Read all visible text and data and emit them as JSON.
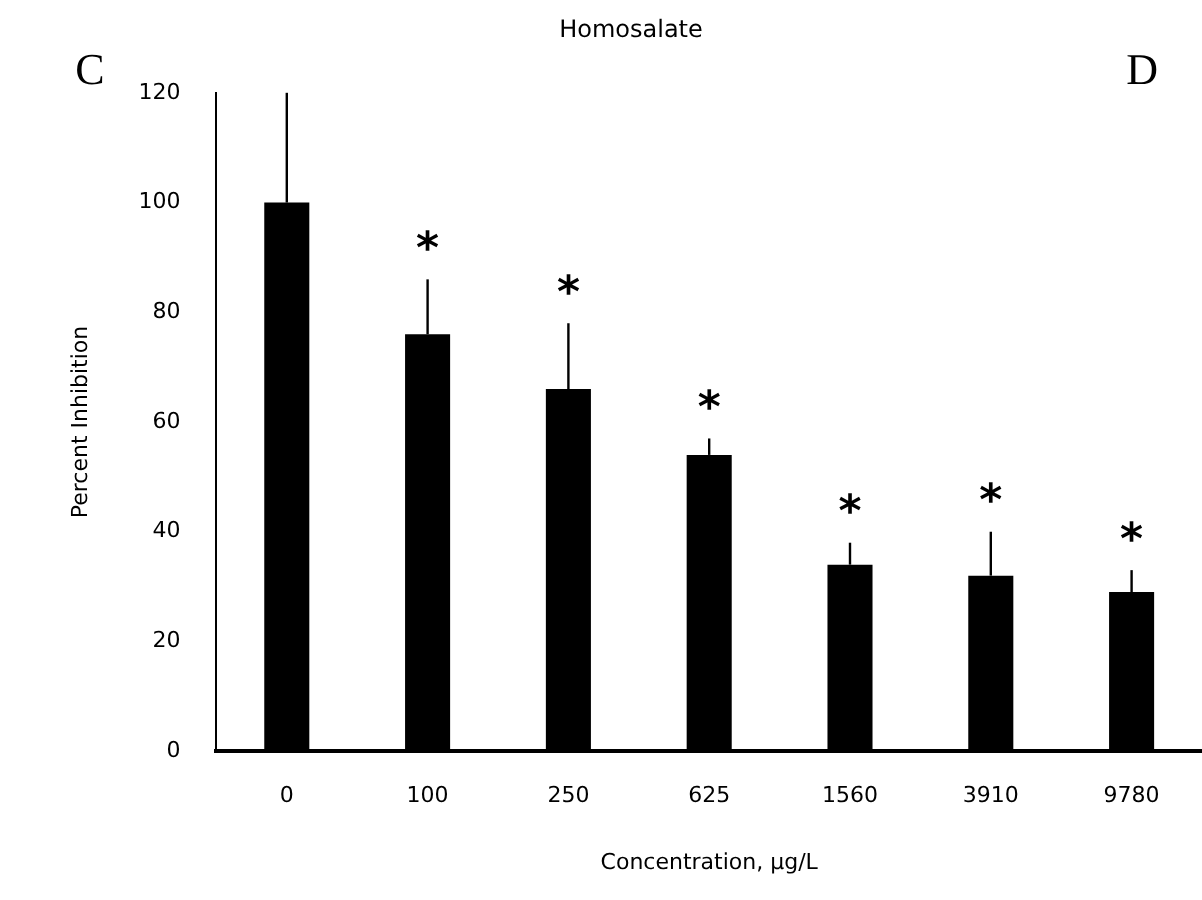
{
  "chart_data": {
    "type": "bar",
    "title": "Homosalate",
    "xlabel": "Concentration, µg/L",
    "ylabel": "Percent Inhibition",
    "categories": [
      "0",
      "100",
      "250",
      "625",
      "1560",
      "3910",
      "9780"
    ],
    "values": [
      100,
      76,
      66,
      54,
      34,
      32,
      29
    ],
    "errors": [
      [
        100,
        120
      ],
      [
        76,
        86
      ],
      [
        66,
        78
      ],
      [
        54,
        57
      ],
      [
        34,
        38
      ],
      [
        32,
        40
      ],
      [
        29,
        33
      ]
    ],
    "color": "#000000",
    "ylim": [
      0,
      120
    ],
    "yticks": [
      0,
      20,
      40,
      60,
      80,
      100,
      120
    ],
    "grid": false,
    "legend": false,
    "annotations": [
      "C",
      "D",
      "*",
      "*",
      "*",
      "*",
      "*",
      "*"
    ]
  }
}
